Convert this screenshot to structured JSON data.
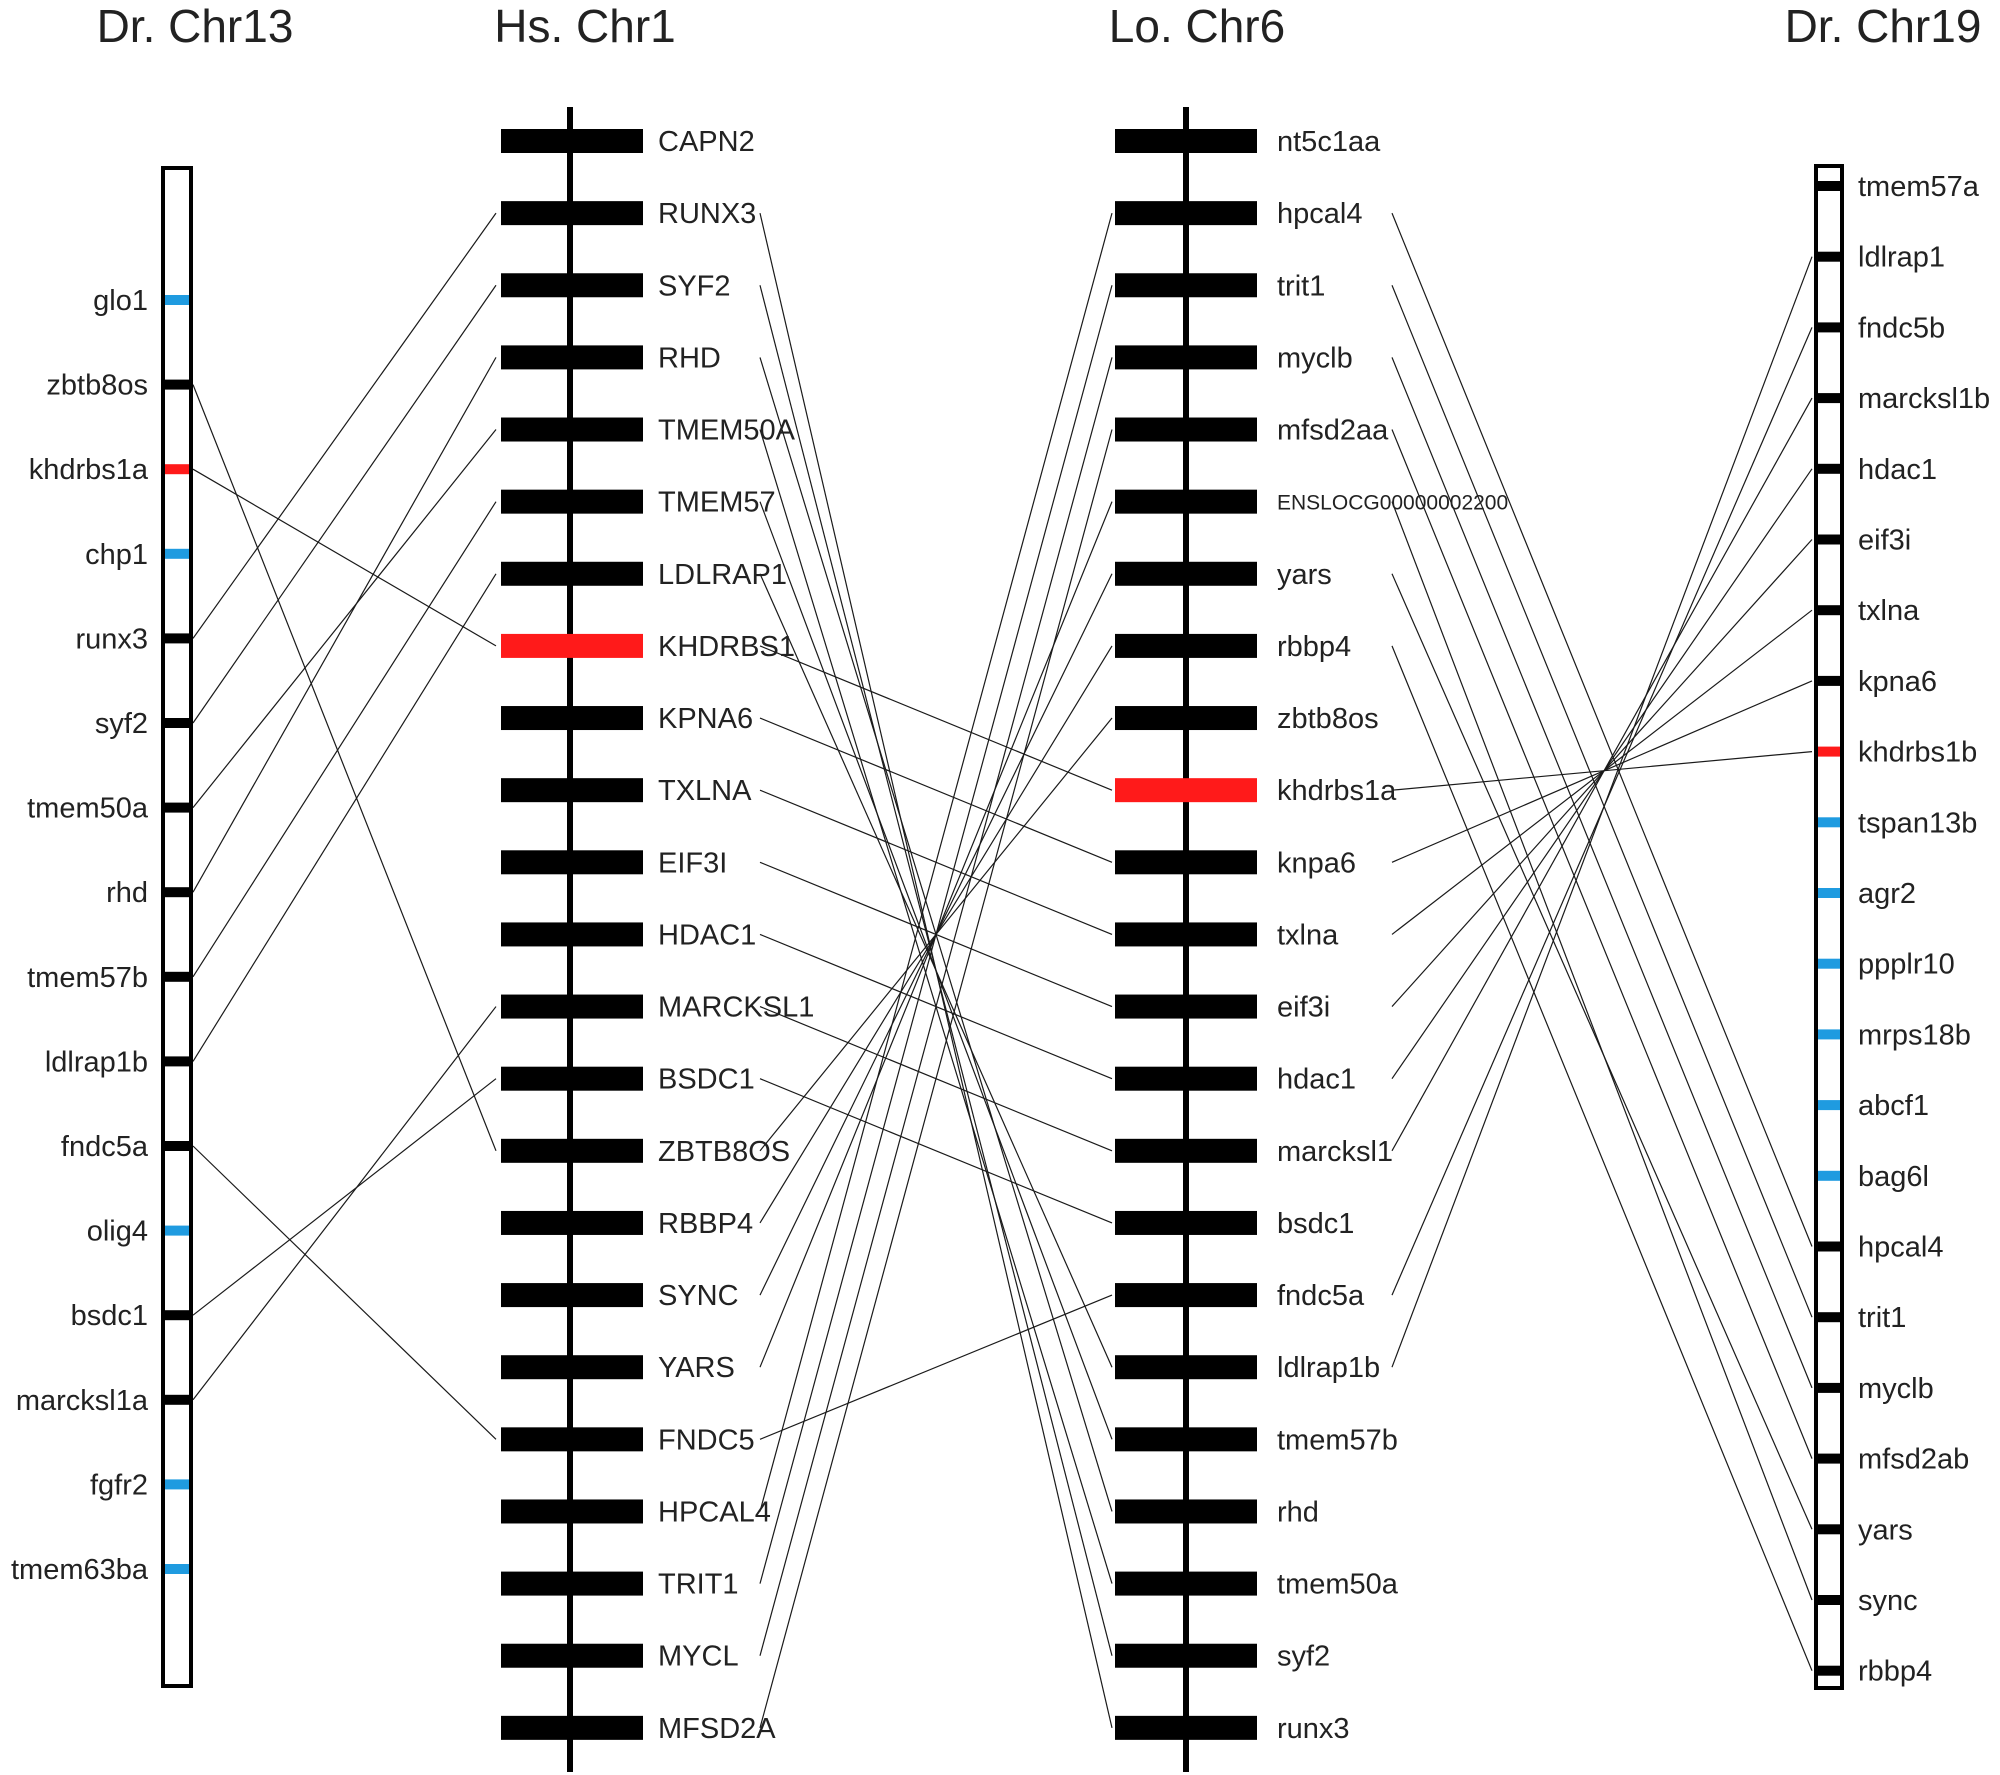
{
  "colors": {
    "highlight": "#ff1a1a",
    "blue": "#1f9be0",
    "black": "#000000"
  },
  "chromosomes": {
    "dr13": {
      "title": "Dr. Chr13"
    },
    "hs1": {
      "title": "Hs. Chr1"
    },
    "lo6": {
      "title": "Lo. Chr6"
    },
    "dr19": {
      "title": "Dr. Chr19"
    }
  },
  "dr13_genes": [
    {
      "name": "glo1",
      "color": "blue"
    },
    {
      "name": "zbtb8os",
      "color": "black"
    },
    {
      "name": "khdrbs1a",
      "color": "highlight"
    },
    {
      "name": "chp1",
      "color": "blue"
    },
    {
      "name": "runx3",
      "color": "black"
    },
    {
      "name": "syf2",
      "color": "black"
    },
    {
      "name": "tmem50a",
      "color": "black"
    },
    {
      "name": "rhd",
      "color": "black"
    },
    {
      "name": "tmem57b",
      "color": "black"
    },
    {
      "name": "ldlrap1b",
      "color": "black"
    },
    {
      "name": "fndc5a",
      "color": "black"
    },
    {
      "name": "olig4",
      "color": "blue"
    },
    {
      "name": "bsdc1",
      "color": "black"
    },
    {
      "name": "marcksl1a",
      "color": "black"
    },
    {
      "name": "fgfr2",
      "color": "blue"
    },
    {
      "name": "tmem63ba",
      "color": "blue"
    }
  ],
  "hs1_genes": [
    {
      "name": "CAPN2",
      "color": "black"
    },
    {
      "name": "RUNX3",
      "color": "black"
    },
    {
      "name": "SYF2",
      "color": "black"
    },
    {
      "name": "RHD",
      "color": "black"
    },
    {
      "name": "TMEM50A",
      "color": "black"
    },
    {
      "name": "TMEM57",
      "color": "black"
    },
    {
      "name": "LDLRAP1",
      "color": "black"
    },
    {
      "name": "KHDRBS1",
      "color": "highlight"
    },
    {
      "name": "KPNA6",
      "color": "black"
    },
    {
      "name": "TXLNA",
      "color": "black"
    },
    {
      "name": "EIF3I",
      "color": "black"
    },
    {
      "name": "HDAC1",
      "color": "black"
    },
    {
      "name": "MARCKSL1",
      "color": "black"
    },
    {
      "name": "BSDC1",
      "color": "black"
    },
    {
      "name": "ZBTB8OS",
      "color": "black"
    },
    {
      "name": "RBBP4",
      "color": "black"
    },
    {
      "name": "SYNC",
      "color": "black"
    },
    {
      "name": "YARS",
      "color": "black"
    },
    {
      "name": "FNDC5",
      "color": "black"
    },
    {
      "name": "HPCAL4",
      "color": "black"
    },
    {
      "name": "TRIT1",
      "color": "black"
    },
    {
      "name": "MYCL",
      "color": "black"
    },
    {
      "name": "MFSD2A",
      "color": "black"
    }
  ],
  "lo6_genes": [
    {
      "name": "nt5c1aa",
      "color": "black"
    },
    {
      "name": "hpcal4",
      "color": "black"
    },
    {
      "name": "trit1",
      "color": "black"
    },
    {
      "name": "myclb",
      "color": "black"
    },
    {
      "name": "mfsd2aa",
      "color": "black"
    },
    {
      "name": "ENSLOCG00000002200",
      "color": "black"
    },
    {
      "name": "yars",
      "color": "black"
    },
    {
      "name": "rbbp4",
      "color": "black"
    },
    {
      "name": "zbtb8os",
      "color": "black"
    },
    {
      "name": "khdrbs1a",
      "color": "highlight"
    },
    {
      "name": "knpa6",
      "color": "black"
    },
    {
      "name": "txlna",
      "color": "black"
    },
    {
      "name": "eif3i",
      "color": "black"
    },
    {
      "name": "hdac1",
      "color": "black"
    },
    {
      "name": "marcksl1",
      "color": "black"
    },
    {
      "name": "bsdc1",
      "color": "black"
    },
    {
      "name": "fndc5a",
      "color": "black"
    },
    {
      "name": "ldlrap1b",
      "color": "black"
    },
    {
      "name": "tmem57b",
      "color": "black"
    },
    {
      "name": "rhd",
      "color": "black"
    },
    {
      "name": "tmem50a",
      "color": "black"
    },
    {
      "name": "syf2",
      "color": "black"
    },
    {
      "name": "runx3",
      "color": "black"
    }
  ],
  "dr19_genes": [
    {
      "name": "tmem57a",
      "color": "black"
    },
    {
      "name": "ldlrap1",
      "color": "black"
    },
    {
      "name": "fndc5b",
      "color": "black"
    },
    {
      "name": "marcksl1b",
      "color": "black"
    },
    {
      "name": "hdac1",
      "color": "black"
    },
    {
      "name": "eif3i",
      "color": "black"
    },
    {
      "name": "txlna",
      "color": "black"
    },
    {
      "name": "kpna6",
      "color": "black"
    },
    {
      "name": "khdrbs1b",
      "color": "highlight"
    },
    {
      "name": "tspan13b",
      "color": "blue"
    },
    {
      "name": "agr2",
      "color": "blue"
    },
    {
      "name": "ppplr10",
      "color": "blue"
    },
    {
      "name": "mrps18b",
      "color": "blue"
    },
    {
      "name": "abcf1",
      "color": "blue"
    },
    {
      "name": "bag6l",
      "color": "blue"
    },
    {
      "name": "hpcal4",
      "color": "black"
    },
    {
      "name": "trit1",
      "color": "black"
    },
    {
      "name": "myclb",
      "color": "black"
    },
    {
      "name": "mfsd2ab",
      "color": "black"
    },
    {
      "name": "yars",
      "color": "black"
    },
    {
      "name": "sync",
      "color": "black"
    },
    {
      "name": "rbbp4",
      "color": "black"
    }
  ],
  "links_dr13_hs1": [
    [
      1,
      14
    ],
    [
      2,
      7
    ],
    [
      4,
      1
    ],
    [
      5,
      2
    ],
    [
      6,
      4
    ],
    [
      7,
      3
    ],
    [
      8,
      5
    ],
    [
      9,
      6
    ],
    [
      10,
      18
    ],
    [
      12,
      13
    ],
    [
      13,
      12
    ]
  ],
  "links_hs1_lo6": [
    [
      1,
      22
    ],
    [
      2,
      21
    ],
    [
      3,
      19
    ],
    [
      4,
      20
    ],
    [
      5,
      18
    ],
    [
      6,
      17
    ],
    [
      7,
      9
    ],
    [
      8,
      10
    ],
    [
      9,
      11
    ],
    [
      10,
      12
    ],
    [
      11,
      13
    ],
    [
      12,
      14
    ],
    [
      13,
      15
    ],
    [
      14,
      8
    ],
    [
      15,
      7
    ],
    [
      16,
      6
    ],
    [
      17,
      5
    ],
    [
      18,
      16
    ],
    [
      19,
      1
    ],
    [
      20,
      2
    ],
    [
      21,
      3
    ],
    [
      22,
      4
    ]
  ],
  "links_lo6_dr19": [
    [
      1,
      15
    ],
    [
      2,
      16
    ],
    [
      3,
      17
    ],
    [
      4,
      18
    ],
    [
      5,
      20
    ],
    [
      6,
      19
    ],
    [
      7,
      21
    ],
    [
      9,
      8
    ],
    [
      10,
      7
    ],
    [
      11,
      6
    ],
    [
      12,
      5
    ],
    [
      13,
      4
    ],
    [
      14,
      3
    ],
    [
      16,
      2
    ],
    [
      17,
      1
    ]
  ]
}
